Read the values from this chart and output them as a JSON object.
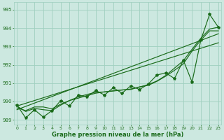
{
  "xlabel": "Graphe pression niveau de la mer (hPa)",
  "x": [
    0,
    1,
    2,
    3,
    4,
    5,
    6,
    7,
    8,
    9,
    10,
    11,
    12,
    13,
    14,
    15,
    16,
    17,
    18,
    19,
    20,
    21,
    22,
    23
  ],
  "jagged_line": [
    989.8,
    989.1,
    989.55,
    989.15,
    989.5,
    990.05,
    989.75,
    990.35,
    990.25,
    990.6,
    990.35,
    990.75,
    990.45,
    990.85,
    990.65,
    990.95,
    991.45,
    991.55,
    991.25,
    992.25,
    991.05,
    993.35,
    994.75,
    994.05
  ],
  "trend_line1": [
    989.55,
    989.73,
    989.91,
    990.09,
    990.27,
    990.45,
    990.63,
    990.81,
    990.99,
    991.17,
    991.35,
    991.53,
    991.71,
    991.89,
    992.07,
    992.25,
    992.43,
    992.61,
    992.79,
    992.97,
    993.15,
    993.33,
    993.51,
    993.69
  ],
  "trend_line2": [
    989.75,
    989.9,
    990.05,
    990.2,
    990.35,
    990.5,
    990.65,
    990.8,
    990.95,
    991.1,
    991.25,
    991.4,
    991.55,
    991.7,
    991.85,
    992.0,
    992.15,
    992.3,
    992.45,
    992.6,
    992.75,
    992.9,
    993.05,
    993.2
  ],
  "smooth_line1": [
    989.75,
    989.45,
    989.62,
    989.55,
    989.5,
    989.8,
    990.05,
    990.25,
    990.38,
    990.5,
    990.52,
    990.58,
    990.63,
    990.65,
    990.8,
    990.88,
    991.1,
    991.38,
    991.7,
    992.05,
    992.75,
    993.35,
    993.85,
    993.85
  ],
  "smooth_line2": [
    989.65,
    989.5,
    989.7,
    989.7,
    989.6,
    989.85,
    990.05,
    990.18,
    990.32,
    990.45,
    990.52,
    990.57,
    990.62,
    990.68,
    990.78,
    990.92,
    991.12,
    991.42,
    991.82,
    992.22,
    992.85,
    993.45,
    993.95,
    994.05
  ],
  "ylim": [
    988.75,
    995.4
  ],
  "yticks": [
    989,
    990,
    991,
    992,
    993,
    994,
    995
  ],
  "xlim": [
    -0.3,
    23.3
  ],
  "bg_color": "#cce8e0",
  "line_color": "#1a6b1a",
  "grid_color": "#9fcfbf"
}
